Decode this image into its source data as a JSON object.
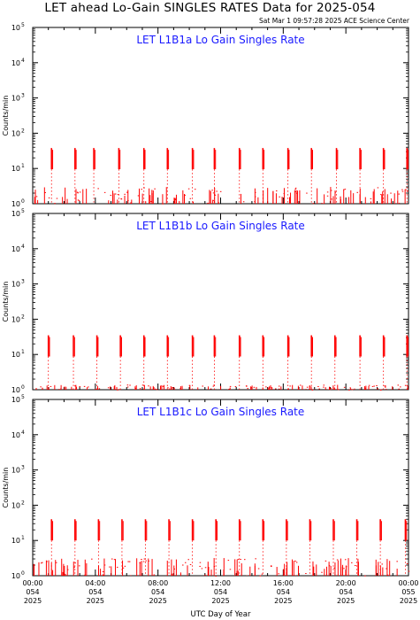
{
  "title": "LET ahead Lo-Gain SINGLES RATES Data for 2025-054",
  "timestamp": "Sat Mar  1 09:57:28 2025 ACE Science Center",
  "colors": {
    "data": "#ff0000",
    "panel_title": "#1a1aff",
    "axes": "#000000"
  },
  "chart_data": [
    {
      "type": "line",
      "title": "LET L1B1a Lo Gain Singles Rate",
      "ylabel": "Counts/min",
      "xlabel": "UTC Day of Year",
      "yscale": "log",
      "ylim": [
        1,
        100000
      ],
      "xlim_hours": [
        0,
        24
      ],
      "yticks": [
        1,
        10,
        100,
        1000,
        10000,
        100000
      ],
      "spikes_hours": [
        1.2,
        2.7,
        3.9,
        5.5,
        7.1,
        8.6,
        10.2,
        11.6,
        13.2,
        14.7,
        16.3,
        17.8,
        19.4,
        20.9,
        22.4,
        23.9
      ],
      "spike_level": 38,
      "baseline_level": 1.8
    },
    {
      "type": "line",
      "title": "LET L1B1b Lo Gain Singles Rate",
      "ylabel": "Counts/min",
      "xlabel": "UTC Day of Year",
      "yscale": "log",
      "ylim": [
        1,
        100000
      ],
      "xlim_hours": [
        0,
        24
      ],
      "yticks": [
        1,
        10,
        100,
        1000,
        10000,
        100000
      ],
      "spikes_hours": [
        1.0,
        2.6,
        4.1,
        5.6,
        7.1,
        8.6,
        10.2,
        11.6,
        13.2,
        14.7,
        16.3,
        17.8,
        19.3,
        20.9,
        22.4,
        23.9
      ],
      "spike_level": 35,
      "baseline_level": 1.1
    },
    {
      "type": "line",
      "title": "LET L1B1c Lo Gain Singles Rate",
      "ylabel": "Counts/min",
      "xlabel": "UTC Day of Year",
      "yscale": "log",
      "ylim": [
        1,
        100000
      ],
      "xlim_hours": [
        0,
        24
      ],
      "yticks": [
        1,
        10,
        100,
        1000,
        10000,
        100000
      ],
      "spikes_hours": [
        1.2,
        2.7,
        4.2,
        5.7,
        7.2,
        8.7,
        10.2,
        11.7,
        13.2,
        14.7,
        16.2,
        17.7,
        19.2,
        20.7,
        22.2,
        23.8
      ],
      "spike_level": 40,
      "baseline_level": 2.0
    }
  ],
  "x_ticks": [
    {
      "hour": 0,
      "time": "00:00",
      "doy": "054",
      "year": "2025"
    },
    {
      "hour": 4,
      "time": "04:00",
      "doy": "054",
      "year": "2025"
    },
    {
      "hour": 8,
      "time": "08:00",
      "doy": "054",
      "year": "2025"
    },
    {
      "hour": 12,
      "time": "12:00",
      "doy": "054",
      "year": "2025"
    },
    {
      "hour": 16,
      "time": "16:00",
      "doy": "054",
      "year": "2025"
    },
    {
      "hour": 20,
      "time": "20:00",
      "doy": "054",
      "year": "2025"
    },
    {
      "hour": 24,
      "time": "00:00",
      "doy": "055",
      "year": "2025"
    }
  ]
}
